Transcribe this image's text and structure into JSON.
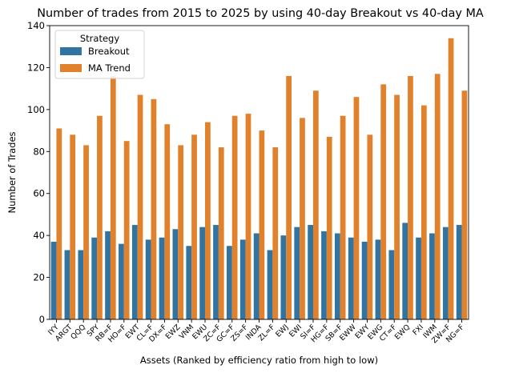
{
  "chart_data": {
    "type": "bar",
    "title": "Number of trades from 2015 to 2025 by using 40-day Breakout vs 40-day MA",
    "xlabel": "Assets (Ranked by efficiency ratio from high to low)",
    "ylabel": "Number of Trades",
    "ylim": [
      0,
      140
    ],
    "yticks": [
      0,
      20,
      40,
      60,
      80,
      100,
      120,
      140
    ],
    "grid": false,
    "legend": {
      "title": "Strategy",
      "placement": "top-left"
    },
    "categories": [
      "IYY",
      "ARGT",
      "QQQ",
      "SPY",
      "RB=F",
      "HO=F",
      "EWT",
      "CL=F",
      "DX=F",
      "EWZ",
      "VNM",
      "EWU",
      "ZC=F",
      "GC=F",
      "ZS=F",
      "INDA",
      "ZL=F",
      "EWJ",
      "EWI",
      "SI=F",
      "HG=F",
      "SB=F",
      "EWW",
      "EWY",
      "EWG",
      "CT=F",
      "EWQ",
      "FXI",
      "IWM",
      "ZW=F",
      "NG=F"
    ],
    "series": [
      {
        "name": "Breakout",
        "color": "#3274a1",
        "values": [
          37,
          33,
          33,
          39,
          42,
          36,
          45,
          38,
          39,
          43,
          35,
          44,
          45,
          35,
          38,
          41,
          33,
          40,
          44,
          45,
          42,
          41,
          39,
          37,
          38,
          33,
          46,
          39,
          41,
          44,
          45
        ]
      },
      {
        "name": "MA Trend",
        "color": "#e1812c",
        "values": [
          91,
          88,
          83,
          97,
          116,
          85,
          107,
          105,
          93,
          83,
          88,
          94,
          82,
          97,
          98,
          90,
          82,
          116,
          96,
          109,
          87,
          97,
          106,
          88,
          112,
          107,
          116,
          102,
          117,
          134,
          109
        ]
      }
    ]
  }
}
